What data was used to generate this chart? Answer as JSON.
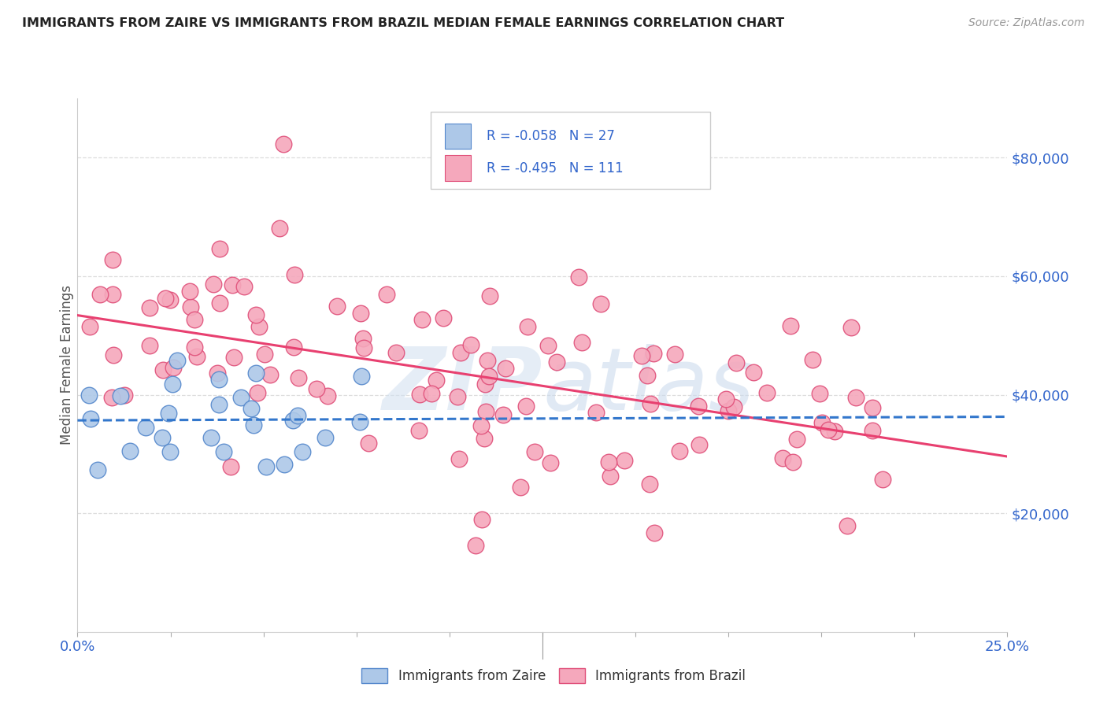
{
  "title": "IMMIGRANTS FROM ZAIRE VS IMMIGRANTS FROM BRAZIL MEDIAN FEMALE EARNINGS CORRELATION CHART",
  "source": "Source: ZipAtlas.com",
  "ylabel": "Median Female Earnings",
  "xmin": 0.0,
  "xmax": 0.25,
  "ymin": 0,
  "ymax": 90000,
  "yticks": [
    20000,
    40000,
    60000,
    80000
  ],
  "ytick_labels": [
    "$20,000",
    "$40,000",
    "$60,000",
    "$80,000"
  ],
  "zaire_color": "#adc8e8",
  "brazil_color": "#f5a8bc",
  "zaire_edge_color": "#5588cc",
  "brazil_edge_color": "#e0507a",
  "trend_zaire_color": "#3377cc",
  "trend_brazil_color": "#e84070",
  "r_zaire": -0.058,
  "n_zaire": 27,
  "r_brazil": -0.495,
  "n_brazil": 111,
  "legend_text_color": "#3366cc",
  "background_color": "#ffffff",
  "grid_color": "#dddddd",
  "title_color": "#222222",
  "source_color": "#999999",
  "ylabel_color": "#555555",
  "xtick_color": "#3366cc",
  "watermark_color_zip": "#d0dff0",
  "watermark_color_atlas": "#c8d8ec"
}
